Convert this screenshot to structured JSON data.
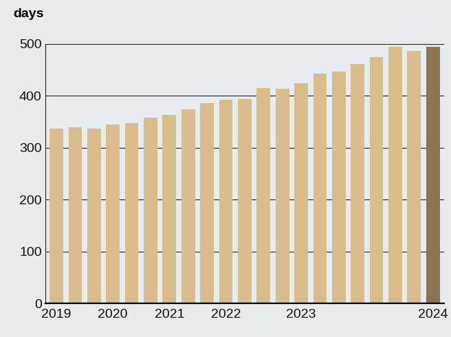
{
  "chart_data": {
    "type": "bar",
    "y_label": "days",
    "categories": [
      "2019",
      null,
      null,
      "2020",
      null,
      null,
      "2021",
      null,
      null,
      "2022",
      null,
      null,
      null,
      "2023",
      null,
      null,
      null,
      null,
      null,
      null,
      "2024"
    ],
    "values": [
      336,
      339,
      337,
      345,
      347,
      358,
      363,
      374,
      386,
      392,
      393,
      415,
      413,
      424,
      442,
      447,
      461,
      474,
      494,
      486,
      494
    ],
    "colors": [
      "#d8bc8c",
      "#d8bc8c",
      "#d8bc8c",
      "#d8bc8c",
      "#d8bc8c",
      "#d8bc8c",
      "#d8bc8c",
      "#d8bc8c",
      "#d8bc8c",
      "#d8bc8c",
      "#d8bc8c",
      "#d8bc8c",
      "#d8bc8c",
      "#d8bc8c",
      "#d8bc8c",
      "#d8bc8c",
      "#d8bc8c",
      "#d8bc8c",
      "#d8bc8c",
      "#d8bc8c",
      "#8c7554"
    ],
    "ylim": [
      0,
      500
    ],
    "yticks": [
      0,
      100,
      200,
      300,
      400,
      500
    ],
    "grid": true
  }
}
